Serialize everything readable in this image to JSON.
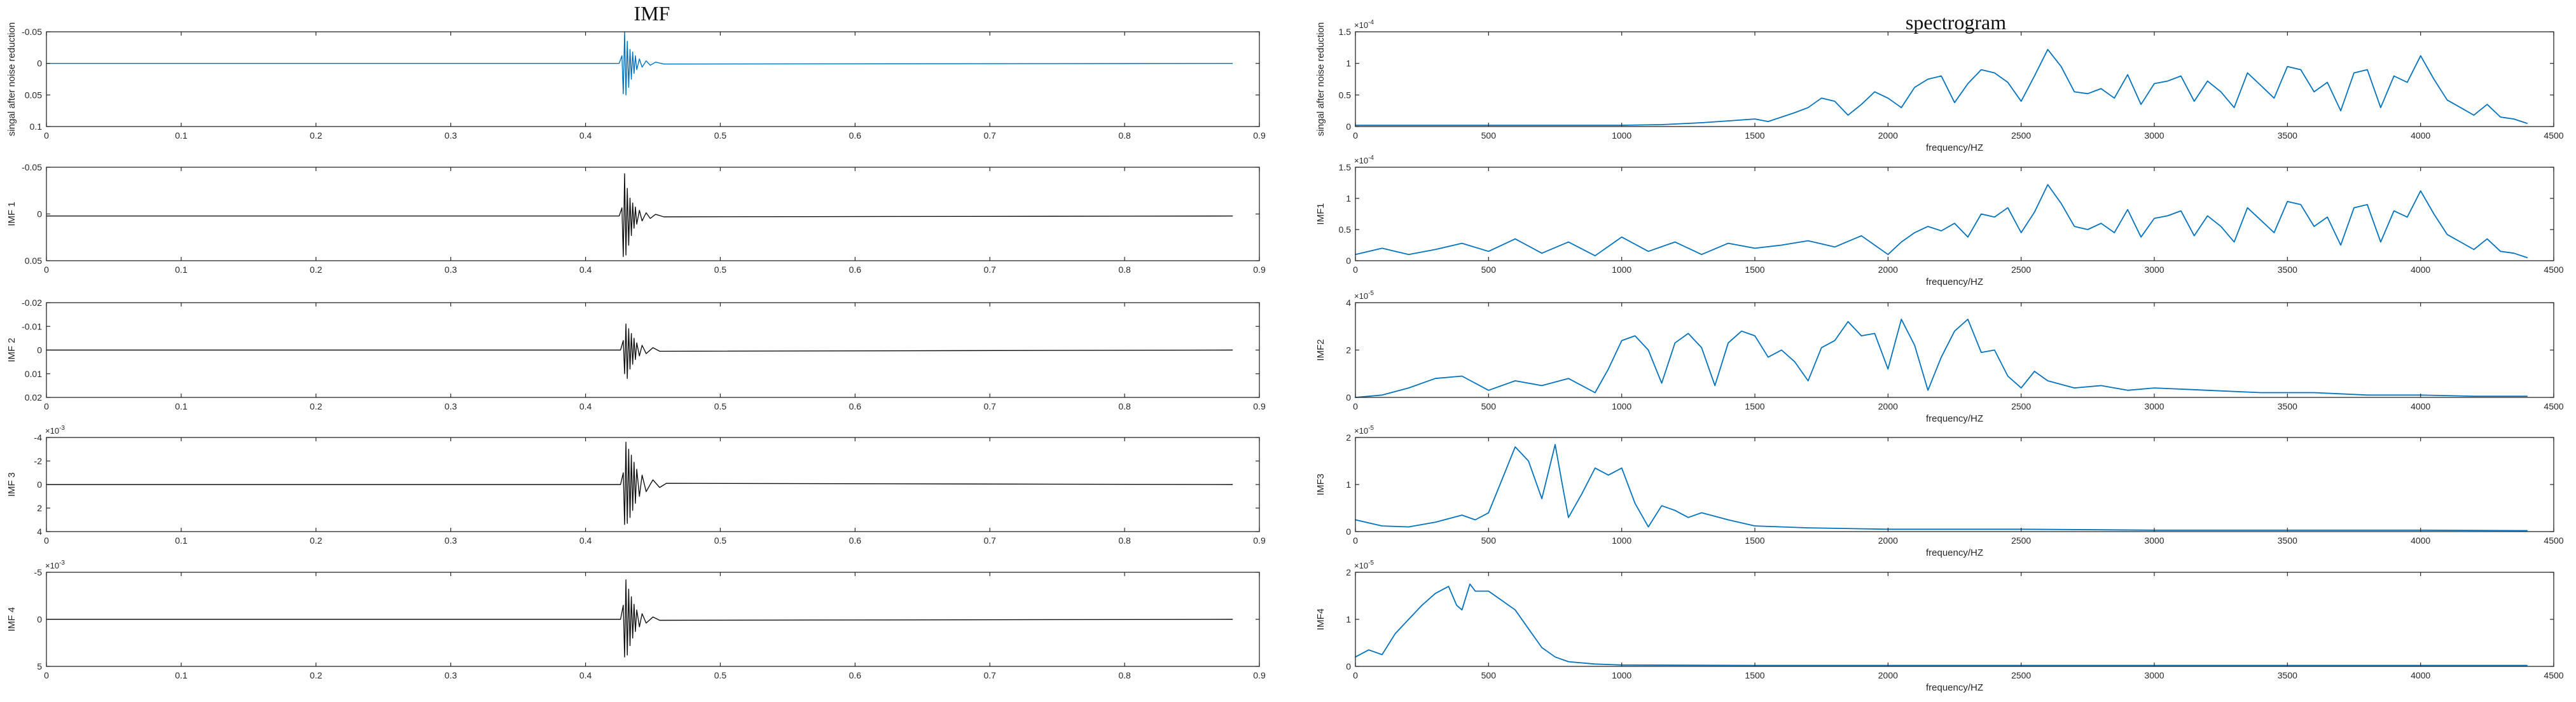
{
  "figure": {
    "left_title": "IMF",
    "right_title": "spectrogram"
  },
  "colors": {
    "blue": "#0072BD",
    "black": "#111111",
    "axis": "#262626"
  },
  "chart_data": [
    {
      "type": "line",
      "panel": "IMF",
      "row": 1,
      "ylabel": "singal after noise reduction",
      "xlabel": "",
      "x_range": [
        0,
        0.9
      ],
      "ylim": [
        -0.05,
        0.1
      ],
      "y_reversed": true,
      "xticks": [
        "0",
        "0.1",
        "0.2",
        "0.3",
        "0.4",
        "0.5",
        "0.6",
        "0.7",
        "0.8",
        "0.9"
      ],
      "yticks": [
        "-0.05",
        "0",
        "0.05",
        "0.1"
      ],
      "exponent": "",
      "color": "#0072BD",
      "series": [
        {
          "x": [
            0,
            0.425,
            0.427,
            0.428,
            0.429,
            0.43,
            0.431,
            0.432,
            0.433,
            0.434,
            0.435,
            0.436,
            0.437,
            0.438,
            0.44,
            0.442,
            0.445,
            0.448,
            0.452,
            0.458,
            0.88
          ],
          "y": [
            0,
            0,
            -0.012,
            0.048,
            -0.05,
            0.05,
            -0.035,
            0.038,
            -0.022,
            0.025,
            -0.018,
            0.016,
            -0.012,
            0.01,
            -0.007,
            0.006,
            -0.004,
            0.003,
            -0.002,
            0.001,
            0
          ]
        }
      ]
    },
    {
      "type": "line",
      "panel": "IMF",
      "row": 2,
      "ylabel": "IMF 1",
      "xlabel": "",
      "x_range": [
        0,
        0.9
      ],
      "ylim": [
        -0.06,
        0.055
      ],
      "y_reversed": true,
      "xticks": [
        "0",
        "0.1",
        "0.2",
        "0.3",
        "0.4",
        "0.5",
        "0.6",
        "0.7",
        "0.8",
        "0.9"
      ],
      "yticks": [
        "-0.05",
        "0",
        "0.05"
      ],
      "exponent": "",
      "color": "#111111",
      "series": [
        {
          "x": [
            0,
            0.425,
            0.427,
            0.428,
            0.429,
            0.43,
            0.431,
            0.432,
            0.433,
            0.434,
            0.435,
            0.436,
            0.437,
            0.438,
            0.44,
            0.442,
            0.445,
            0.448,
            0.452,
            0.458,
            0.88
          ],
          "y": [
            0,
            0,
            -0.01,
            0.05,
            -0.052,
            0.048,
            -0.034,
            0.036,
            -0.022,
            0.024,
            -0.016,
            0.015,
            -0.011,
            0.01,
            -0.007,
            0.006,
            -0.004,
            0.003,
            -0.002,
            0.001,
            0
          ]
        }
      ]
    },
    {
      "type": "line",
      "panel": "IMF",
      "row": 3,
      "ylabel": "IMF 2",
      "xlabel": "",
      "x_range": [
        0,
        0.9
      ],
      "ylim": [
        -0.02,
        0.02
      ],
      "y_reversed": true,
      "xticks": [
        "0",
        "0.1",
        "0.2",
        "0.3",
        "0.4",
        "0.5",
        "0.6",
        "0.7",
        "0.8",
        "0.9"
      ],
      "yticks": [
        "-0.02",
        "-0.01",
        "0",
        "0.01",
        "0.02"
      ],
      "exponent": "",
      "color": "#111111",
      "series": [
        {
          "x": [
            0,
            0.426,
            0.428,
            0.429,
            0.43,
            0.431,
            0.432,
            0.433,
            0.434,
            0.435,
            0.436,
            0.437,
            0.438,
            0.44,
            0.442,
            0.445,
            0.45,
            0.455,
            0.88
          ],
          "y": [
            0,
            0,
            -0.004,
            0.01,
            -0.011,
            0.012,
            -0.009,
            0.008,
            -0.007,
            0.006,
            -0.005,
            0.004,
            -0.003,
            0.0025,
            -0.002,
            0.0015,
            -0.001,
            0.0005,
            0
          ]
        }
      ]
    },
    {
      "type": "line",
      "panel": "IMF",
      "row": 4,
      "ylabel": "IMF 3",
      "xlabel": "",
      "x_range": [
        0,
        0.9
      ],
      "ylim": [
        -4,
        4
      ],
      "y_reversed": true,
      "xticks": [
        "0",
        "0.1",
        "0.2",
        "0.3",
        "0.4",
        "0.5",
        "0.6",
        "0.7",
        "0.8",
        "0.9"
      ],
      "yticks": [
        "-4",
        "-2",
        "0",
        "2",
        "4"
      ],
      "exponent": "-3",
      "color": "#111111",
      "series": [
        {
          "x": [
            0,
            0.426,
            0.428,
            0.429,
            0.43,
            0.431,
            0.432,
            0.433,
            0.434,
            0.435,
            0.436,
            0.437,
            0.438,
            0.44,
            0.442,
            0.445,
            0.45,
            0.455,
            0.46,
            0.88
          ],
          "y": [
            0,
            0,
            -1.0,
            3.4,
            -3.6,
            3.3,
            -3.0,
            2.8,
            -2.5,
            2.2,
            -1.9,
            1.6,
            -1.3,
            1.0,
            -0.8,
            0.6,
            -0.4,
            0.25,
            -0.1,
            0
          ]
        }
      ]
    },
    {
      "type": "line",
      "panel": "IMF",
      "row": 5,
      "ylabel": "IMF 4",
      "xlabel": "",
      "x_range": [
        0,
        0.9
      ],
      "ylim": [
        -5,
        5
      ],
      "y_reversed": true,
      "xticks": [
        "0",
        "0.1",
        "0.2",
        "0.3",
        "0.4",
        "0.5",
        "0.6",
        "0.7",
        "0.8",
        "0.9"
      ],
      "yticks": [
        "-5",
        "0",
        "5"
      ],
      "exponent": "-3",
      "color": "#111111",
      "series": [
        {
          "x": [
            0,
            0.426,
            0.428,
            0.429,
            0.43,
            0.431,
            0.432,
            0.433,
            0.434,
            0.435,
            0.436,
            0.437,
            0.438,
            0.44,
            0.442,
            0.445,
            0.45,
            0.455,
            0.88
          ],
          "y": [
            0,
            0,
            -1.5,
            4.0,
            -4.2,
            3.8,
            -3.2,
            2.8,
            -2.4,
            2.0,
            -1.6,
            1.3,
            -1.0,
            0.8,
            -0.6,
            0.4,
            -0.25,
            0.1,
            0
          ]
        }
      ]
    },
    {
      "type": "line",
      "panel": "spectrogram",
      "row": 1,
      "ylabel": "singal after noise reduction",
      "xlabel": "frequency/HZ",
      "x_range": [
        0,
        4500
      ],
      "ylim": [
        0,
        1.5
      ],
      "y_reversed": false,
      "xticks": [
        "0",
        "500",
        "1000",
        "1500",
        "2000",
        "2500",
        "3000",
        "3500",
        "4000",
        "4500"
      ],
      "yticks": [
        "0",
        "0.5",
        "1",
        "1.5"
      ],
      "exponent": "-4",
      "color": "#0072BD",
      "series": [
        {
          "x": [
            0,
            500,
            1000,
            1150,
            1300,
            1400,
            1500,
            1550,
            1600,
            1650,
            1700,
            1750,
            1800,
            1850,
            1900,
            1950,
            2000,
            2050,
            2100,
            2150,
            2200,
            2250,
            2300,
            2350,
            2400,
            2450,
            2500,
            2550,
            2600,
            2650,
            2700,
            2750,
            2800,
            2850,
            2900,
            2950,
            3000,
            3050,
            3100,
            3150,
            3200,
            3250,
            3300,
            3350,
            3400,
            3450,
            3500,
            3550,
            3600,
            3650,
            3700,
            3750,
            3800,
            3850,
            3900,
            3950,
            4000,
            4050,
            4100,
            4150,
            4200,
            4250,
            4300,
            4350,
            4400
          ],
          "y": [
            0.02,
            0.02,
            0.02,
            0.03,
            0.06,
            0.09,
            0.12,
            0.08,
            0.15,
            0.22,
            0.3,
            0.45,
            0.4,
            0.18,
            0.35,
            0.55,
            0.45,
            0.3,
            0.62,
            0.75,
            0.8,
            0.38,
            0.68,
            0.9,
            0.85,
            0.7,
            0.4,
            0.8,
            1.22,
            0.95,
            0.55,
            0.52,
            0.6,
            0.45,
            0.82,
            0.35,
            0.68,
            0.72,
            0.8,
            0.4,
            0.72,
            0.55,
            0.3,
            0.85,
            0.65,
            0.45,
            0.95,
            0.9,
            0.55,
            0.7,
            0.25,
            0.85,
            0.9,
            0.3,
            0.8,
            0.7,
            1.12,
            0.75,
            0.42,
            0.3,
            0.18,
            0.35,
            0.15,
            0.12,
            0.05
          ]
        }
      ]
    },
    {
      "type": "line",
      "panel": "spectrogram",
      "row": 2,
      "ylabel": "IMF1",
      "xlabel": "frequency/HZ",
      "x_range": [
        0,
        4500
      ],
      "ylim": [
        0,
        1.5
      ],
      "y_reversed": false,
      "xticks": [
        "0",
        "500",
        "1000",
        "1500",
        "2000",
        "2500",
        "3000",
        "3500",
        "4000",
        "4500"
      ],
      "yticks": [
        "0",
        "0.5",
        "1",
        "1.5"
      ],
      "exponent": "-4",
      "color": "#0072BD",
      "series": [
        {
          "x": [
            0,
            100,
            200,
            300,
            400,
            500,
            600,
            700,
            800,
            900,
            1000,
            1100,
            1200,
            1300,
            1400,
            1500,
            1600,
            1700,
            1800,
            1900,
            2000,
            2050,
            2100,
            2150,
            2200,
            2250,
            2300,
            2350,
            2400,
            2450,
            2500,
            2550,
            2600,
            2650,
            2700,
            2750,
            2800,
            2850,
            2900,
            2950,
            3000,
            3050,
            3100,
            3150,
            3200,
            3250,
            3300,
            3350,
            3400,
            3450,
            3500,
            3550,
            3600,
            3650,
            3700,
            3750,
            3800,
            3850,
            3900,
            3950,
            4000,
            4050,
            4100,
            4150,
            4200,
            4250,
            4300,
            4350,
            4400
          ],
          "y": [
            0.1,
            0.2,
            0.1,
            0.18,
            0.28,
            0.15,
            0.35,
            0.12,
            0.3,
            0.08,
            0.38,
            0.15,
            0.3,
            0.1,
            0.28,
            0.2,
            0.25,
            0.32,
            0.22,
            0.4,
            0.1,
            0.3,
            0.45,
            0.55,
            0.48,
            0.6,
            0.38,
            0.75,
            0.7,
            0.85,
            0.45,
            0.78,
            1.22,
            0.92,
            0.55,
            0.5,
            0.6,
            0.45,
            0.82,
            0.38,
            0.68,
            0.72,
            0.8,
            0.4,
            0.72,
            0.55,
            0.3,
            0.85,
            0.65,
            0.45,
            0.95,
            0.9,
            0.55,
            0.7,
            0.25,
            0.85,
            0.9,
            0.3,
            0.8,
            0.7,
            1.12,
            0.75,
            0.42,
            0.3,
            0.18,
            0.35,
            0.15,
            0.12,
            0.05
          ]
        }
      ]
    },
    {
      "type": "line",
      "panel": "spectrogram",
      "row": 3,
      "ylabel": "IMF2",
      "xlabel": "frequency/HZ",
      "x_range": [
        0,
        4500
      ],
      "ylim": [
        0,
        4
      ],
      "y_reversed": false,
      "xticks": [
        "0",
        "500",
        "1000",
        "1500",
        "2000",
        "2500",
        "3000",
        "3500",
        "4000",
        "4500"
      ],
      "yticks": [
        "0",
        "2",
        "4"
      ],
      "exponent": "-5",
      "color": "#0072BD",
      "series": [
        {
          "x": [
            0,
            100,
            200,
            300,
            400,
            500,
            600,
            700,
            800,
            900,
            950,
            1000,
            1050,
            1100,
            1150,
            1200,
            1250,
            1300,
            1350,
            1400,
            1450,
            1500,
            1550,
            1600,
            1650,
            1700,
            1750,
            1800,
            1850,
            1900,
            1950,
            2000,
            2050,
            2100,
            2150,
            2200,
            2250,
            2300,
            2350,
            2400,
            2450,
            2500,
            2550,
            2600,
            2700,
            2800,
            2900,
            3000,
            3200,
            3400,
            3600,
            3800,
            4000,
            4200,
            4400
          ],
          "y": [
            0.0,
            0.1,
            0.4,
            0.8,
            0.9,
            0.3,
            0.7,
            0.5,
            0.8,
            0.2,
            1.2,
            2.4,
            2.6,
            2.0,
            0.6,
            2.3,
            2.7,
            2.1,
            0.5,
            2.3,
            2.8,
            2.6,
            1.7,
            2.0,
            1.5,
            0.7,
            2.1,
            2.4,
            3.2,
            2.6,
            2.7,
            1.2,
            3.3,
            2.2,
            0.3,
            1.7,
            2.8,
            3.3,
            1.9,
            2.0,
            0.9,
            0.4,
            1.1,
            0.7,
            0.4,
            0.5,
            0.3,
            0.4,
            0.3,
            0.2,
            0.2,
            0.1,
            0.1,
            0.05,
            0.05
          ]
        }
      ]
    },
    {
      "type": "line",
      "panel": "spectrogram",
      "row": 4,
      "ylabel": "IMF3",
      "xlabel": "frequency/HZ",
      "x_range": [
        0,
        4500
      ],
      "ylim": [
        0,
        2
      ],
      "y_reversed": false,
      "xticks": [
        "0",
        "500",
        "1000",
        "1500",
        "2000",
        "2500",
        "3000",
        "3500",
        "4000",
        "4500"
      ],
      "yticks": [
        "0",
        "1",
        "2"
      ],
      "exponent": "-5",
      "color": "#0072BD",
      "series": [
        {
          "x": [
            0,
            100,
            200,
            300,
            400,
            450,
            500,
            550,
            600,
            650,
            700,
            750,
            780,
            800,
            850,
            900,
            950,
            1000,
            1050,
            1100,
            1150,
            1200,
            1250,
            1300,
            1400,
            1500,
            1700,
            2000,
            2500,
            3000,
            3500,
            4000,
            4400
          ],
          "y": [
            0.25,
            0.12,
            0.1,
            0.2,
            0.35,
            0.25,
            0.4,
            1.1,
            1.8,
            1.5,
            0.7,
            1.85,
            0.9,
            0.3,
            0.8,
            1.35,
            1.2,
            1.35,
            0.6,
            0.1,
            0.55,
            0.45,
            0.3,
            0.4,
            0.25,
            0.12,
            0.08,
            0.05,
            0.05,
            0.03,
            0.03,
            0.03,
            0.02
          ]
        }
      ]
    },
    {
      "type": "line",
      "panel": "spectrogram",
      "row": 5,
      "ylabel": "IMF4",
      "xlabel": "frequency/HZ",
      "x_range": [
        0,
        4500
      ],
      "ylim": [
        0,
        2
      ],
      "y_reversed": false,
      "xticks": [
        "0",
        "500",
        "1000",
        "1500",
        "2000",
        "2500",
        "3000",
        "3500",
        "4000",
        "4500"
      ],
      "yticks": [
        "0",
        "1",
        "2"
      ],
      "exponent": "-5",
      "color": "#0072BD",
      "series": [
        {
          "x": [
            0,
            50,
            100,
            150,
            200,
            250,
            300,
            350,
            380,
            400,
            430,
            450,
            500,
            550,
            600,
            650,
            700,
            750,
            800,
            900,
            1000,
            1500,
            2000,
            3000,
            4000,
            4400
          ],
          "y": [
            0.2,
            0.35,
            0.25,
            0.7,
            1.0,
            1.3,
            1.55,
            1.7,
            1.3,
            1.2,
            1.75,
            1.6,
            1.6,
            1.4,
            1.2,
            0.8,
            0.4,
            0.2,
            0.1,
            0.05,
            0.03,
            0.02,
            0.02,
            0.02,
            0.02,
            0.02
          ]
        }
      ]
    }
  ]
}
